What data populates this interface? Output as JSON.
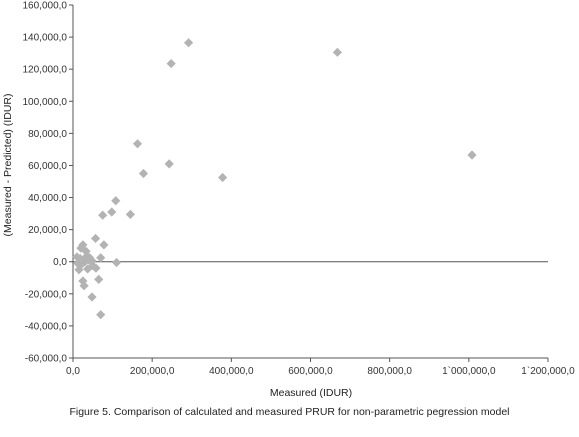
{
  "chart_data": {
    "type": "scatter",
    "title": "",
    "xlabel": "Measured (IDUR)",
    "ylabel": "(Measured - Predicted) (IDUR)",
    "xlim": [
      0,
      1200000
    ],
    "ylim": [
      -60000,
      160000
    ],
    "x_ticks": [
      0,
      200000,
      400000,
      600000,
      800000,
      1000000,
      1200000
    ],
    "x_tick_labels": [
      "0,0",
      "200,000,0",
      "400,000,0",
      "600,000,0",
      "800,000,0",
      "1`000,000,0",
      "1`200,000,0"
    ],
    "y_ticks": [
      -60000,
      -40000,
      -20000,
      0,
      20000,
      40000,
      60000,
      80000,
      100000,
      120000,
      140000,
      160000
    ],
    "y_tick_labels": [
      "-60,000,0",
      "-40,000,0",
      "-20,000,0",
      "0,0",
      "20,000,0",
      "40,000,0",
      "60,000,0",
      "80,000,0",
      "100,000,0",
      "120,000,0",
      "140,000,0",
      "160,000,0"
    ],
    "grid": false,
    "legend": "none",
    "marker_color": "#b3b3b3",
    "marker": "diamond",
    "series": [
      {
        "points": [
          [
            292000,
            136500
          ],
          [
            248000,
            123500
          ],
          [
            668000,
            130500
          ],
          [
            1008000,
            66500
          ],
          [
            163000,
            73500
          ],
          [
            243000,
            61000
          ],
          [
            178000,
            55000
          ],
          [
            378000,
            52500
          ],
          [
            108000,
            38000
          ],
          [
            98000,
            31000
          ],
          [
            145000,
            29500
          ],
          [
            75000,
            29000
          ],
          [
            25000,
            10500
          ],
          [
            57000,
            14500
          ],
          [
            78000,
            10500
          ],
          [
            20000,
            8500
          ],
          [
            33000,
            6500
          ],
          [
            10000,
            3000
          ],
          [
            18000,
            2000
          ],
          [
            28000,
            1500
          ],
          [
            40000,
            1000
          ],
          [
            48000,
            500
          ],
          [
            12000,
            -1000
          ],
          [
            22000,
            -1500
          ],
          [
            30000,
            0
          ],
          [
            70000,
            2500
          ],
          [
            110000,
            -500
          ],
          [
            37000,
            -4500
          ],
          [
            15000,
            -5000
          ],
          [
            58000,
            -4000
          ],
          [
            25000,
            -12000
          ],
          [
            28000,
            -15000
          ],
          [
            65000,
            -11000
          ],
          [
            48000,
            -22000
          ],
          [
            70000,
            -33000
          ],
          [
            42000,
            2500
          ],
          [
            35000,
            3500
          ],
          [
            50000,
            -2500
          ]
        ]
      }
    ]
  },
  "caption": "Figure 5. Comparison of calculated and measured PRUR for non-parametric pegression model"
}
